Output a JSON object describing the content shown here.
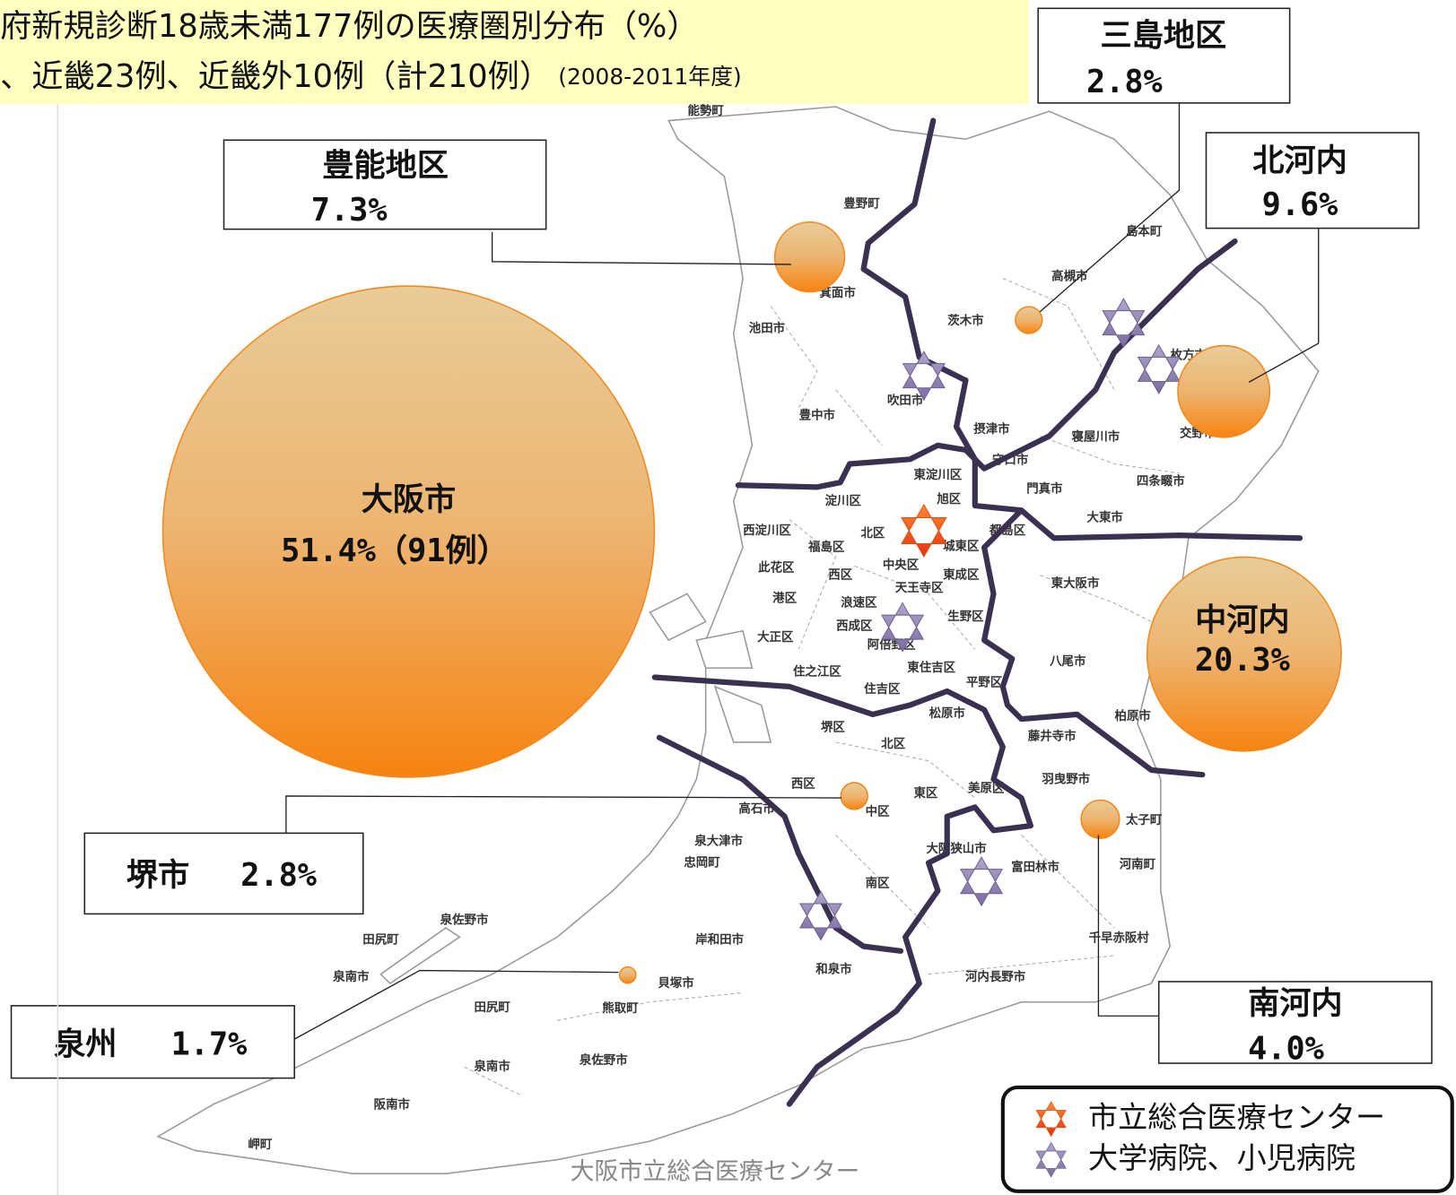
{
  "header": {
    "title_line1": "府新規診断18歳未満177例の医療圏別分布（%）",
    "title_line2": "、近畿23例、近畿外10例（計210例）",
    "title_period": "(2008-2011年度)"
  },
  "regions": [
    {
      "name": "豊能地区",
      "value": 7.3,
      "value_label": "7.3%"
    },
    {
      "name": "三島地区",
      "value": 2.8,
      "value_label": "2.8%"
    },
    {
      "name": "北河内",
      "value": 9.6,
      "value_label": "9.6%"
    },
    {
      "name": "大阪市",
      "value": 51.4,
      "value_label": "51.4%（91例）"
    },
    {
      "name": "中河内",
      "value": 20.3,
      "value_label": "20.3%"
    },
    {
      "name": "堺市",
      "value": 2.8,
      "value_label": "2.8%"
    },
    {
      "name": "泉州",
      "value": 1.7,
      "value_label": "1.7%"
    },
    {
      "name": "南河内",
      "value": 4.0,
      "value_label": "4.0%"
    }
  ],
  "map_labels": [
    "能勢町",
    "豊野町",
    "島本町",
    "高槻市",
    "箕面市",
    "池田市",
    "茨木市",
    "枚方市",
    "吹田市",
    "豊中市",
    "摂津市",
    "寝屋川市",
    "交野市",
    "守口市",
    "門真市",
    "四条畷市",
    "東淀川区",
    "淀川区",
    "旭区",
    "大東市",
    "西淀川区",
    "北区",
    "都島区",
    "福島区",
    "城東区",
    "此花区",
    "中央区",
    "西区",
    "東成区",
    "港区",
    "天王寺区",
    "浪速区",
    "東大阪市",
    "生野区",
    "大正区",
    "西成区",
    "阿倍野区",
    "八尾市",
    "住之江区",
    "東住吉区",
    "住吉区",
    "平野区",
    "松原市",
    "柏原市",
    "堺区",
    "北区",
    "藤井寺市",
    "羽曳野市",
    "西区",
    "東区",
    "美原区",
    "高石市",
    "中区",
    "太子町",
    "泉大津市",
    "大阪狭山市",
    "忠岡町",
    "富田林市",
    "河南町",
    "南区",
    "泉佐野市",
    "田尻町",
    "岸和田市",
    "千早赤阪村",
    "泉南市",
    "和泉市",
    "貝塚市",
    "河内長野市",
    "田尻町",
    "熊取町",
    "泉南市",
    "泉佐野市",
    "阪南市",
    "岬町"
  ],
  "legend": [
    "市立総合医療センター",
    "大学病院、小児病院"
  ],
  "footer": "大阪市立総合医療センター"
}
